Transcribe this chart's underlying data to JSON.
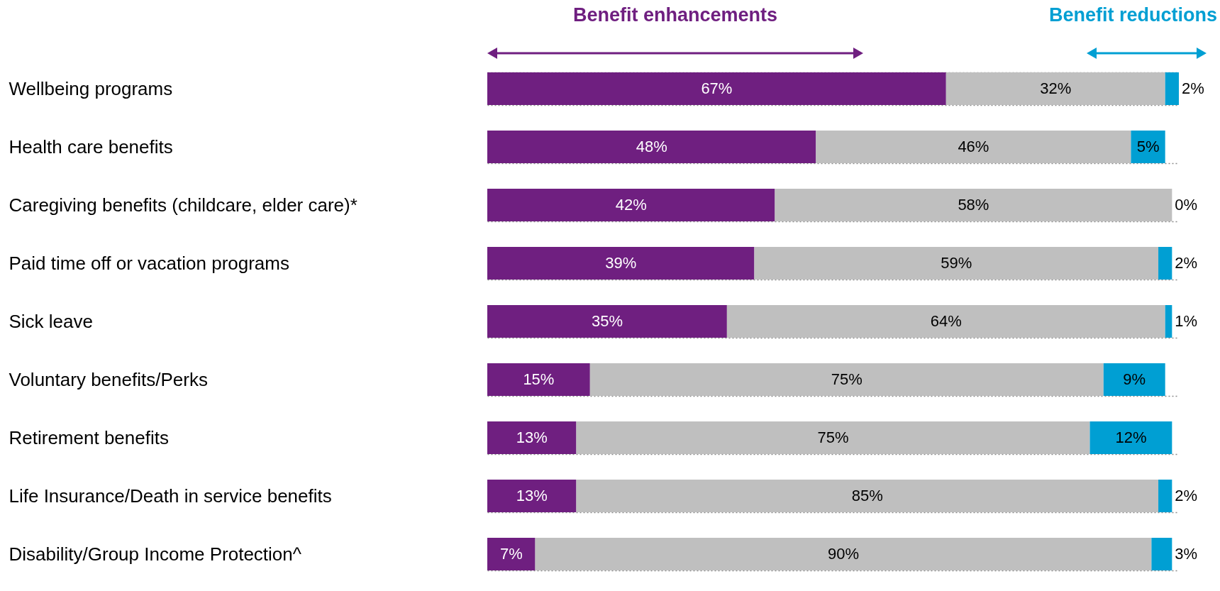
{
  "chart_data": {
    "type": "bar",
    "orientation": "horizontal",
    "stacked": true,
    "grid": "y",
    "categories": [
      "Wellbeing programs",
      "Health care benefits",
      "Caregiving benefits (childcare, elder care)*",
      "Paid time off or vacation programs",
      "Sick leave",
      "Voluntary benefits/Perks",
      "Retirement benefits",
      "Life Insurance/Death in service benefits",
      "Disability/Group Income Protection^"
    ],
    "series": [
      {
        "name": "Benefit enhancements",
        "color": "#6f1f80",
        "values": [
          67,
          48,
          42,
          39,
          35,
          15,
          13,
          13,
          7
        ],
        "value_labels": [
          "67%",
          "48%",
          "42%",
          "39%",
          "35%",
          "15%",
          "13%",
          "13%",
          "7%"
        ]
      },
      {
        "color": "#bfbfbf",
        "values": [
          32,
          46,
          58,
          59,
          64,
          75,
          75,
          85,
          90
        ],
        "value_labels": [
          "32%",
          "46%",
          "58%",
          "59%",
          "64%",
          "75%",
          "75%",
          "85%",
          "90%"
        ]
      },
      {
        "name": "Benefit reductions",
        "color": "#009fd3",
        "values": [
          2,
          5,
          0,
          2,
          1,
          9,
          12,
          2,
          3
        ],
        "value_labels": [
          "2%",
          "5%",
          "0%",
          "2%",
          "1%",
          "9%",
          "12%",
          "2%",
          "3%"
        ]
      }
    ]
  }
}
